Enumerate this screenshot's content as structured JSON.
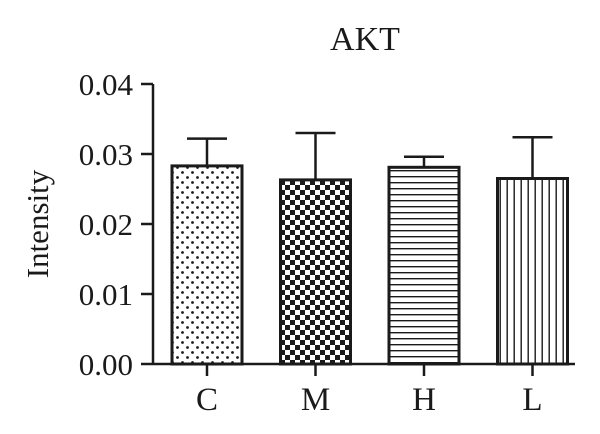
{
  "chart_data": {
    "type": "bar",
    "title": "AKT",
    "ylabel": "Intensity",
    "xlabel": "",
    "categories": [
      "C",
      "M",
      "H",
      "L"
    ],
    "values": [
      0.0283,
      0.0263,
      0.0281,
      0.0265
    ],
    "errors": [
      0.0039,
      0.0067,
      0.0015,
      0.0059
    ],
    "ylim": [
      0,
      0.04
    ],
    "yticks": [
      "0.00",
      "0.01",
      "0.02",
      "0.03",
      "0.04"
    ],
    "fill_patterns": [
      "dots",
      "checkerboard",
      "horizontal-lines",
      "vertical-lines"
    ],
    "grid": false,
    "legend": "none",
    "colors": {
      "ink": "#1a1a1a",
      "background": "#ffffff"
    }
  }
}
